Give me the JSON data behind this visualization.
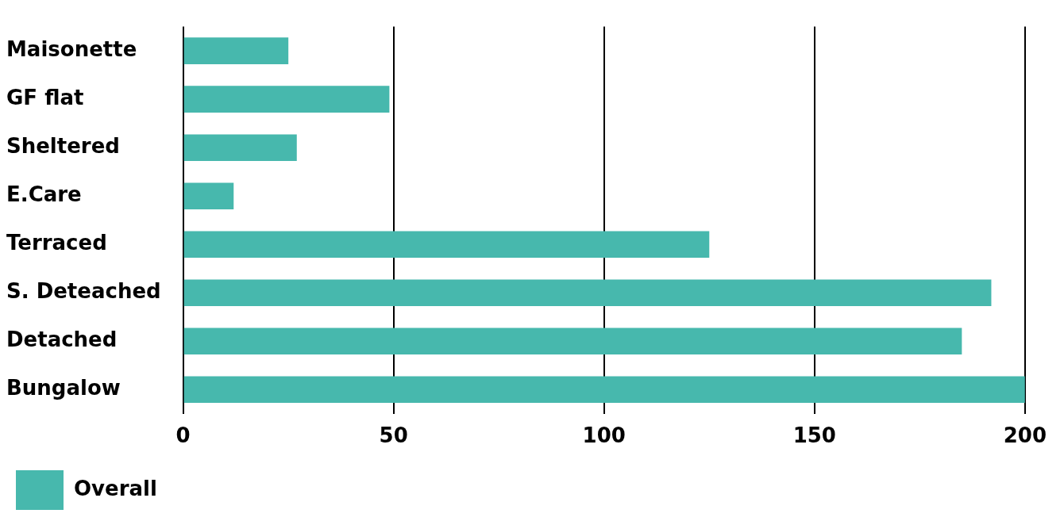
{
  "chart_data": {
    "type": "bar",
    "orientation": "horizontal",
    "categories": [
      "Maisonette",
      "GF flat",
      "Sheltered",
      "E.Care",
      "Terraced",
      "S. Deteached",
      "Detached",
      "Bungalow"
    ],
    "series": [
      {
        "name": "Overall",
        "color": "#47b8ad",
        "values": [
          25,
          49,
          27,
          12,
          125,
          192,
          185,
          200
        ]
      }
    ],
    "xlim": [
      0,
      200
    ],
    "xticks": [
      0,
      50,
      100,
      150,
      200
    ],
    "grid": "x",
    "legend": "bottom left"
  }
}
